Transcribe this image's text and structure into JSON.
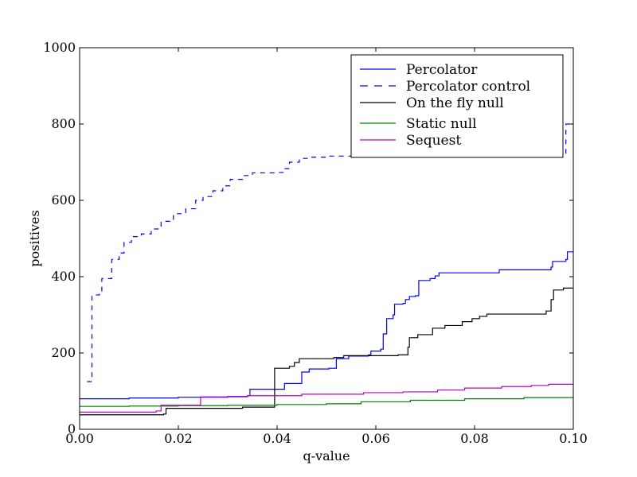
{
  "chart_data": {
    "type": "line",
    "xlabel": "q-value",
    "ylabel": "positives",
    "xlim": [
      0.0,
      0.1
    ],
    "ylim": [
      0,
      1000
    ],
    "x_ticks": [
      0.0,
      0.02,
      0.04,
      0.06,
      0.08,
      0.1
    ],
    "x_tick_labels": [
      "0.00",
      "0.02",
      "0.04",
      "0.06",
      "0.08",
      "0.10"
    ],
    "y_ticks": [
      0,
      200,
      400,
      600,
      800,
      1000
    ],
    "y_tick_labels": [
      "0",
      "200",
      "400",
      "600",
      "800",
      "1000"
    ],
    "grid": false,
    "legend_position": "top-right",
    "series": [
      {
        "name": "Percolator",
        "color": "#0000ff",
        "dash": "solid",
        "step": true,
        "points": [
          [
            0.0,
            80
          ],
          [
            0.01,
            82
          ],
          [
            0.02,
            84
          ],
          [
            0.03,
            86
          ],
          [
            0.034,
            88
          ],
          [
            0.0345,
            105
          ],
          [
            0.0415,
            105
          ],
          [
            0.0415,
            120
          ],
          [
            0.0445,
            120
          ],
          [
            0.045,
            150
          ],
          [
            0.0465,
            158
          ],
          [
            0.0505,
            160
          ],
          [
            0.052,
            185
          ],
          [
            0.0545,
            192
          ],
          [
            0.0585,
            195
          ],
          [
            0.059,
            205
          ],
          [
            0.061,
            210
          ],
          [
            0.0615,
            250
          ],
          [
            0.0622,
            290
          ],
          [
            0.0635,
            300
          ],
          [
            0.0638,
            328
          ],
          [
            0.0655,
            330
          ],
          [
            0.066,
            340
          ],
          [
            0.0668,
            348
          ],
          [
            0.068,
            350
          ],
          [
            0.0687,
            390
          ],
          [
            0.071,
            395
          ],
          [
            0.072,
            402
          ],
          [
            0.0728,
            410
          ],
          [
            0.085,
            418
          ],
          [
            0.0955,
            425
          ],
          [
            0.0958,
            440
          ],
          [
            0.0985,
            445
          ],
          [
            0.0988,
            465
          ],
          [
            0.1,
            465
          ]
        ]
      },
      {
        "name": "Percolator control",
        "color": "#0000ff",
        "dash": "dashed",
        "step": true,
        "points": [
          [
            0.0015,
            125
          ],
          [
            0.0025,
            125
          ],
          [
            0.0025,
            352
          ],
          [
            0.004,
            360
          ],
          [
            0.0045,
            395
          ],
          [
            0.006,
            395
          ],
          [
            0.0065,
            445
          ],
          [
            0.008,
            462
          ],
          [
            0.009,
            490
          ],
          [
            0.0105,
            505
          ],
          [
            0.0125,
            512
          ],
          [
            0.0145,
            525
          ],
          [
            0.0165,
            545
          ],
          [
            0.019,
            565
          ],
          [
            0.0215,
            578
          ],
          [
            0.0235,
            600
          ],
          [
            0.025,
            610
          ],
          [
            0.027,
            625
          ],
          [
            0.029,
            638
          ],
          [
            0.0305,
            655
          ],
          [
            0.033,
            665
          ],
          [
            0.035,
            672
          ],
          [
            0.0395,
            673
          ],
          [
            0.0415,
            683
          ],
          [
            0.0425,
            700
          ],
          [
            0.0445,
            710
          ],
          [
            0.0465,
            713
          ],
          [
            0.0505,
            716
          ],
          [
            0.0555,
            720
          ],
          [
            0.0985,
            800
          ],
          [
            0.1,
            800
          ]
        ]
      },
      {
        "name": "On the fly null",
        "color": "#000000",
        "dash": "solid",
        "step": true,
        "points": [
          [
            0.0,
            38
          ],
          [
            0.017,
            40
          ],
          [
            0.0175,
            55
          ],
          [
            0.033,
            58
          ],
          [
            0.0395,
            63
          ],
          [
            0.0395,
            160
          ],
          [
            0.0425,
            165
          ],
          [
            0.0435,
            175
          ],
          [
            0.0445,
            185
          ],
          [
            0.0515,
            188
          ],
          [
            0.0535,
            193
          ],
          [
            0.0645,
            195
          ],
          [
            0.0665,
            215
          ],
          [
            0.0668,
            240
          ],
          [
            0.0685,
            248
          ],
          [
            0.0715,
            265
          ],
          [
            0.074,
            272
          ],
          [
            0.0775,
            282
          ],
          [
            0.0795,
            290
          ],
          [
            0.081,
            296
          ],
          [
            0.0825,
            302
          ],
          [
            0.0945,
            310
          ],
          [
            0.0955,
            340
          ],
          [
            0.096,
            365
          ],
          [
            0.098,
            370
          ],
          [
            0.1,
            370
          ]
        ]
      },
      {
        "name": "Static null",
        "color": "#008000",
        "dash": "solid",
        "step": true,
        "points": [
          [
            0.0,
            60
          ],
          [
            0.01,
            61
          ],
          [
            0.02,
            62
          ],
          [
            0.03,
            63
          ],
          [
            0.04,
            65
          ],
          [
            0.05,
            67
          ],
          [
            0.057,
            72
          ],
          [
            0.067,
            76
          ],
          [
            0.078,
            80
          ],
          [
            0.09,
            83
          ],
          [
            0.1,
            86
          ]
        ]
      },
      {
        "name": "Sequest",
        "color": "#bf00bf",
        "dash": "solid",
        "step": true,
        "points": [
          [
            0.0,
            45
          ],
          [
            0.0155,
            48
          ],
          [
            0.0165,
            63
          ],
          [
            0.0245,
            65
          ],
          [
            0.0245,
            85
          ],
          [
            0.034,
            88
          ],
          [
            0.045,
            92
          ],
          [
            0.0575,
            96
          ],
          [
            0.0655,
            98
          ],
          [
            0.0725,
            103
          ],
          [
            0.078,
            108
          ],
          [
            0.0855,
            112
          ],
          [
            0.0915,
            115
          ],
          [
            0.095,
            118
          ],
          [
            0.1,
            118
          ]
        ]
      }
    ]
  }
}
